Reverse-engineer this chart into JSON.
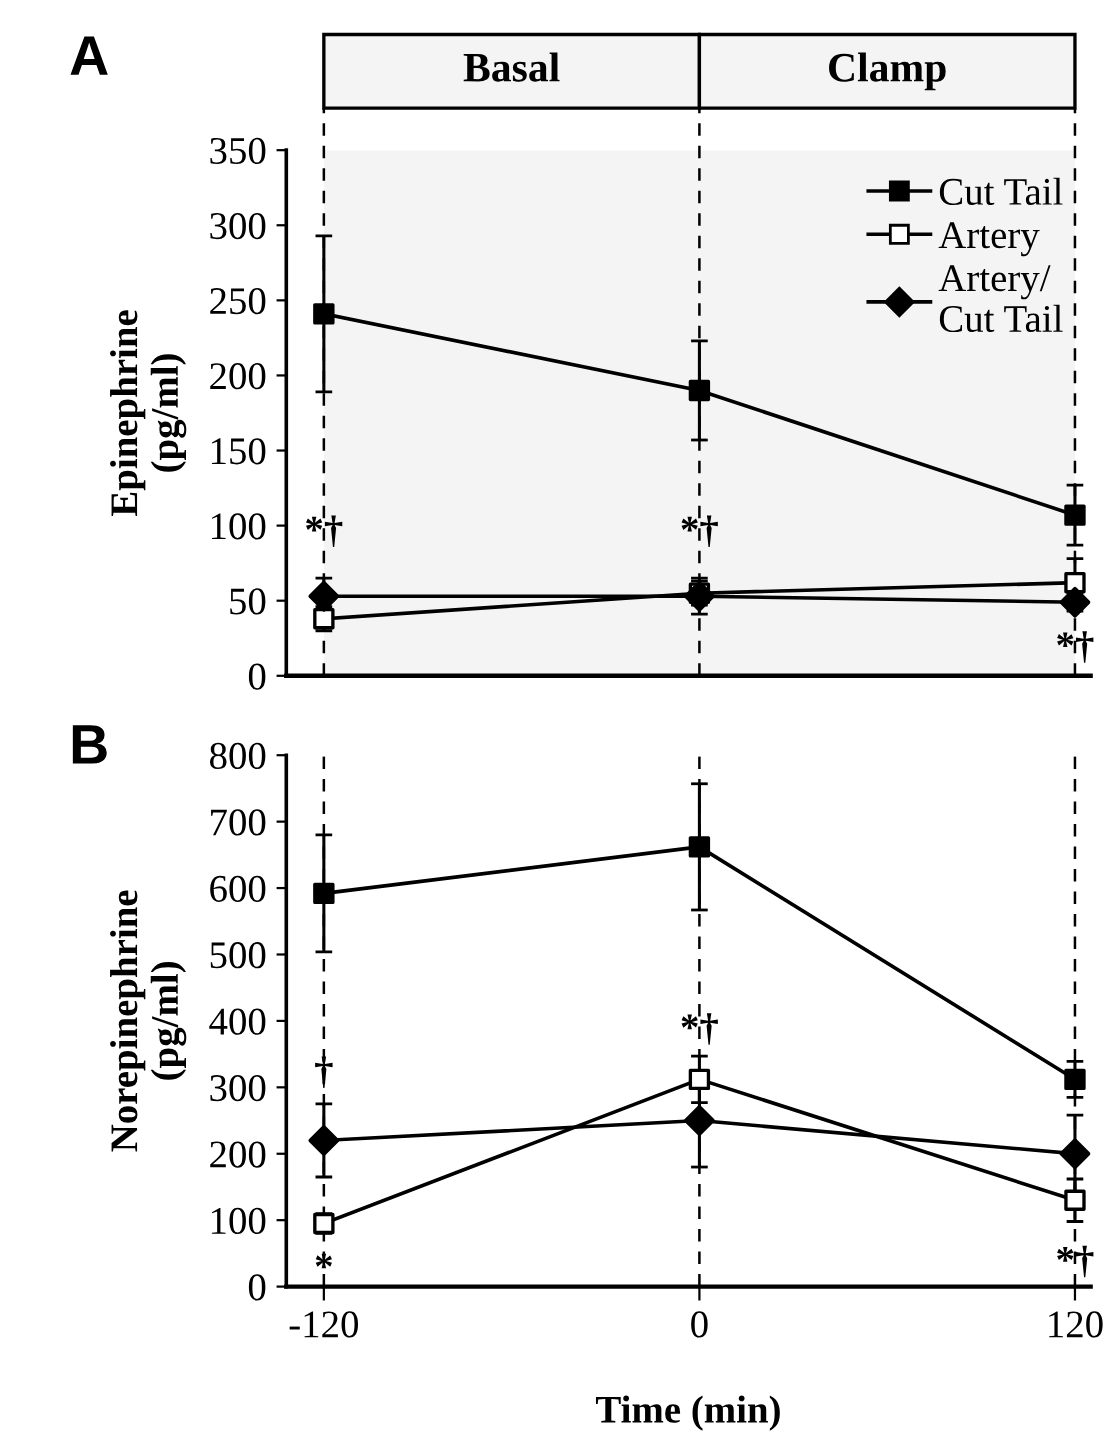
{
  "chart_data": [
    {
      "type": "line",
      "title": "A",
      "ylabel": "Epinephrine\n(pg/ml)",
      "x": [
        -120,
        0,
        120
      ],
      "xlim": [
        -132,
        125
      ],
      "ylim": [
        0,
        350
      ],
      "yticks": [
        0,
        50,
        100,
        150,
        200,
        250,
        300,
        350
      ],
      "tick_labels": "y",
      "legend": "top right",
      "grid": false,
      "series": [
        {
          "name": "Cut Tail",
          "color": "#000000",
          "marker": "square",
          "values": [
            241,
            190,
            107
          ],
          "errors": [
            52,
            33,
            20
          ]
        },
        {
          "name": "Artery",
          "color": "#000000",
          "colors": [
            "#ffffff",
            "#ffffff",
            "#ffffff"
          ],
          "marker": "square",
          "values": [
            38,
            55,
            62
          ],
          "errors": [
            8,
            8,
            16
          ]
        },
        {
          "name": "Artery/\nCut Tail",
          "color": "#000000",
          "marker": "diamond",
          "values": [
            53,
            53,
            49
          ],
          "errors": [
            12,
            12,
            6
          ]
        }
      ],
      "bands": [
        {
          "axis": "x",
          "from": -120,
          "to": 0,
          "label": "Basal",
          "color": "#f4f4f4"
        },
        {
          "axis": "x",
          "from": 0,
          "to": 120,
          "label": "Clamp",
          "color": "#f4f4f4"
        }
      ],
      "ref_lines": [
        {
          "axis": "x",
          "value": -120,
          "line_style": "dashed"
        },
        {
          "axis": "x",
          "value": 0,
          "line_style": "dashed"
        },
        {
          "axis": "x",
          "value": 120,
          "line_style": "dashed"
        }
      ],
      "annotations": [
        {
          "text": "*†",
          "x": -120,
          "y": 95
        },
        {
          "text": "*†",
          "x": 0,
          "y": 95
        },
        {
          "text": "*†",
          "x": 120,
          "y": 18
        }
      ]
    },
    {
      "type": "line",
      "title": "B",
      "xlabel": "Time (min)",
      "ylabel": "Norepinephrine\n(pg/ml)",
      "x": [
        -120,
        0,
        120
      ],
      "xlim": [
        -132,
        125
      ],
      "xticks": [
        -120,
        0,
        120
      ],
      "ylim": [
        0,
        800
      ],
      "yticks": [
        0,
        100,
        200,
        300,
        400,
        500,
        600,
        700,
        800
      ],
      "legend": false,
      "grid": false,
      "series": [
        {
          "color": "#000000",
          "marker": "square",
          "values": [
            592,
            662,
            312
          ],
          "errors": [
            88,
            95,
            27
          ]
        },
        {
          "color": "#000000",
          "colors": [
            "#ffffff",
            "#ffffff",
            "#ffffff"
          ],
          "marker": "square",
          "values": [
            95,
            312,
            130
          ],
          "errors": [
            15,
            35,
            32
          ]
        },
        {
          "color": "#000000",
          "marker": "diamond",
          "values": [
            220,
            250,
            200
          ],
          "errors": [
            55,
            70,
            58
          ]
        }
      ],
      "ref_lines": [
        {
          "axis": "x",
          "value": -120,
          "line_style": "dashed"
        },
        {
          "axis": "x",
          "value": 0,
          "line_style": "dashed"
        },
        {
          "axis": "x",
          "value": 120,
          "line_style": "dashed"
        }
      ],
      "annotations": [
        {
          "text": "†",
          "x": -120,
          "y": 320
        },
        {
          "text": "*",
          "x": -120,
          "y": 25
        },
        {
          "text": "*†",
          "x": 0,
          "y": 385
        },
        {
          "text": "*†",
          "x": 120,
          "y": 35
        }
      ]
    }
  ]
}
